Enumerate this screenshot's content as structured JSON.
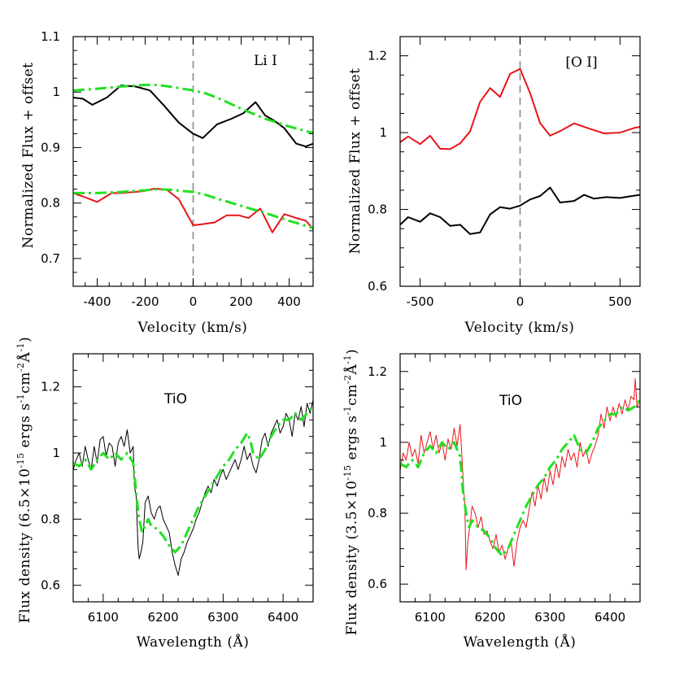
{
  "colors": {
    "black": "#000000",
    "red": "#e8141a",
    "green": "#22e01f",
    "dash": "#888888"
  },
  "chart_data": [
    {
      "id": "li",
      "type": "line",
      "annotation": "Li I",
      "xlabel": "Velocity (km/s)",
      "ylabel": "Normalized Flux + offset",
      "xlim": [
        -500,
        500
      ],
      "ylim": [
        0.65,
        1.1
      ],
      "xticks": [
        -400,
        -200,
        0,
        200,
        400
      ],
      "xtick_labels": [
        "-400",
        "-200",
        "0",
        "200",
        "400"
      ],
      "yticks": [
        0.7,
        0.8,
        0.9,
        1.0,
        1.1
      ],
      "ytick_labels": [
        "0.7",
        "0.8",
        "0.9",
        "1",
        "1.1"
      ],
      "vline": 0,
      "series": [
        {
          "name": "black-spectrum",
          "color": "black",
          "width": 2,
          "style": "solid",
          "x": [
            -500,
            -460,
            -420,
            -360,
            -300,
            -240,
            -180,
            -120,
            -60,
            0,
            40,
            100,
            160,
            210,
            260,
            300,
            340,
            380,
            430,
            470,
            500
          ],
          "y": [
            0.99,
            0.988,
            0.977,
            0.99,
            1.012,
            1.01,
            1.003,
            0.975,
            0.945,
            0.925,
            0.917,
            0.942,
            0.952,
            0.962,
            0.982,
            0.958,
            0.948,
            0.935,
            0.907,
            0.902,
            0.907
          ]
        },
        {
          "name": "green-model-upper",
          "color": "green",
          "width": 3,
          "style": "dashdot",
          "x": [
            -500,
            -400,
            -300,
            -200,
            -150,
            -100,
            0,
            50,
            100,
            200,
            300,
            400,
            500
          ],
          "y": [
            1.003,
            1.006,
            1.01,
            1.013,
            1.013,
            1.01,
            1.003,
            0.998,
            0.99,
            0.97,
            0.952,
            0.938,
            0.926
          ]
        },
        {
          "name": "red-spectrum",
          "color": "red",
          "width": 2,
          "style": "solid",
          "x": [
            -500,
            -460,
            -400,
            -340,
            -300,
            -240,
            -200,
            -160,
            -110,
            -60,
            0,
            40,
            90,
            140,
            190,
            230,
            280,
            330,
            380,
            430,
            470,
            500
          ],
          "y": [
            0.818,
            0.812,
            0.802,
            0.818,
            0.818,
            0.82,
            0.822,
            0.826,
            0.824,
            0.807,
            0.76,
            0.762,
            0.765,
            0.778,
            0.778,
            0.773,
            0.79,
            0.747,
            0.78,
            0.773,
            0.768,
            0.753
          ]
        },
        {
          "name": "green-model-lower",
          "color": "green",
          "width": 3,
          "style": "dashdot",
          "x": [
            -500,
            -400,
            -300,
            -200,
            -150,
            -100,
            0,
            50,
            100,
            200,
            300,
            400,
            500
          ],
          "y": [
            0.818,
            0.818,
            0.82,
            0.823,
            0.825,
            0.824,
            0.82,
            0.815,
            0.808,
            0.795,
            0.782,
            0.768,
            0.755
          ]
        }
      ]
    },
    {
      "id": "oi",
      "type": "line",
      "annotation": "[O I]",
      "xlabel": "Velocity (km/s)",
      "ylabel": "Normalized Flux + offset",
      "xlim": [
        -600,
        600
      ],
      "ylim": [
        0.6,
        1.25
      ],
      "xticks": [
        -500,
        0,
        500
      ],
      "xtick_labels": [
        "-500",
        "0",
        "500"
      ],
      "yticks": [
        0.6,
        0.8,
        1.0,
        1.2
      ],
      "ytick_labels": [
        "0.6",
        "0.8",
        "1",
        "1.2"
      ],
      "vline": 0,
      "series": [
        {
          "name": "red-spectrum",
          "color": "red",
          "width": 2,
          "style": "solid",
          "x": [
            -600,
            -560,
            -500,
            -450,
            -400,
            -350,
            -300,
            -250,
            -200,
            -150,
            -100,
            -50,
            0,
            50,
            100,
            150,
            200,
            270,
            350,
            420,
            500,
            570,
            600
          ],
          "y": [
            0.975,
            0.99,
            0.97,
            0.992,
            0.958,
            0.957,
            0.972,
            1.003,
            1.08,
            1.116,
            1.093,
            1.153,
            1.166,
            1.103,
            1.025,
            0.992,
            1.004,
            1.024,
            1.01,
            0.998,
            1.0,
            1.012,
            1.015
          ]
        },
        {
          "name": "black-spectrum",
          "color": "black",
          "width": 2,
          "style": "solid",
          "x": [
            -600,
            -560,
            -500,
            -450,
            -400,
            -350,
            -300,
            -250,
            -200,
            -150,
            -100,
            -50,
            0,
            50,
            100,
            150,
            200,
            270,
            320,
            370,
            430,
            500,
            560,
            600
          ],
          "y": [
            0.76,
            0.78,
            0.768,
            0.79,
            0.78,
            0.757,
            0.76,
            0.736,
            0.74,
            0.787,
            0.806,
            0.802,
            0.81,
            0.826,
            0.835,
            0.857,
            0.818,
            0.822,
            0.838,
            0.828,
            0.832,
            0.83,
            0.835,
            0.838
          ]
        }
      ]
    },
    {
      "id": "tio-left",
      "type": "line",
      "annotation": "TiO",
      "xlabel": "Wavelength (Å)",
      "ylabel_parts": [
        "Flux density (6.5×10",
        "-15",
        " ergs s",
        "-1",
        "cm",
        "-2",
        "Å",
        "-1",
        ")"
      ],
      "xlim": [
        6050,
        6450
      ],
      "ylim": [
        0.55,
        1.3
      ],
      "xticks": [
        6100,
        6200,
        6300,
        6400
      ],
      "xtick_labels": [
        "6100",
        "6200",
        "6300",
        "6400"
      ],
      "yticks": [
        0.6,
        0.8,
        1.0,
        1.2
      ],
      "ytick_labels": [
        "0.6",
        "0.8",
        "1",
        "1.2"
      ],
      "series": [
        {
          "name": "black-spectrum",
          "color": "black",
          "width": 1,
          "style": "solid",
          "x": [
            6050,
            6055,
            6060,
            6065,
            6070,
            6075,
            6080,
            6085,
            6090,
            6095,
            6100,
            6105,
            6110,
            6115,
            6120,
            6125,
            6130,
            6135,
            6140,
            6145,
            6150,
            6152,
            6155,
            6158,
            6160,
            6163,
            6166,
            6170,
            6175,
            6180,
            6185,
            6190,
            6195,
            6200,
            6205,
            6210,
            6215,
            6220,
            6225,
            6230,
            6235,
            6240,
            6245,
            6250,
            6255,
            6260,
            6265,
            6270,
            6275,
            6280,
            6285,
            6290,
            6295,
            6300,
            6305,
            6310,
            6315,
            6320,
            6325,
            6330,
            6335,
            6340,
            6345,
            6350,
            6355,
            6360,
            6365,
            6370,
            6375,
            6380,
            6385,
            6390,
            6395,
            6400,
            6405,
            6410,
            6415,
            6420,
            6425,
            6430,
            6435,
            6440,
            6445,
            6450
          ],
          "y": [
            0.95,
            0.98,
            1.0,
            0.96,
            1.02,
            0.98,
            0.95,
            1.02,
            0.97,
            1.04,
            1.05,
            0.99,
            1.03,
            1.02,
            0.96,
            1.03,
            1.05,
            1.02,
            1.07,
            1.0,
            1.02,
            0.9,
            0.87,
            0.72,
            0.68,
            0.7,
            0.73,
            0.85,
            0.87,
            0.82,
            0.8,
            0.83,
            0.84,
            0.8,
            0.78,
            0.76,
            0.7,
            0.66,
            0.63,
            0.68,
            0.7,
            0.73,
            0.75,
            0.77,
            0.8,
            0.82,
            0.85,
            0.88,
            0.9,
            0.88,
            0.92,
            0.9,
            0.93,
            0.95,
            0.92,
            0.94,
            0.96,
            0.98,
            0.95,
            0.98,
            1.02,
            0.98,
            1.0,
            0.96,
            0.94,
            0.98,
            1.04,
            1.06,
            1.02,
            1.06,
            1.08,
            1.1,
            1.06,
            1.08,
            1.12,
            1.1,
            1.05,
            1.12,
            1.1,
            1.14,
            1.08,
            1.15,
            1.12,
            1.16
          ]
        },
        {
          "name": "green-model",
          "color": "green",
          "width": 3,
          "style": "dashdot",
          "x": [
            6050,
            6060,
            6070,
            6080,
            6090,
            6100,
            6110,
            6120,
            6130,
            6140,
            6150,
            6155,
            6160,
            6165,
            6170,
            6175,
            6180,
            6190,
            6200,
            6210,
            6220,
            6230,
            6240,
            6250,
            6260,
            6270,
            6280,
            6290,
            6300,
            6310,
            6320,
            6330,
            6340,
            6345,
            6350,
            6360,
            6370,
            6380,
            6390,
            6400,
            6410,
            6420,
            6430,
            6440,
            6450
          ],
          "y": [
            0.97,
            0.96,
            0.98,
            0.95,
            0.98,
            1.0,
            0.98,
            1.0,
            0.98,
            1.0,
            0.97,
            0.88,
            0.8,
            0.76,
            0.78,
            0.8,
            0.78,
            0.77,
            0.75,
            0.72,
            0.7,
            0.72,
            0.76,
            0.8,
            0.84,
            0.87,
            0.9,
            0.93,
            0.96,
            0.98,
            1.01,
            1.03,
            1.06,
            1.04,
            1.0,
            0.98,
            1.01,
            1.05,
            1.08,
            1.1,
            1.1,
            1.12,
            1.1,
            1.12,
            1.14
          ]
        }
      ]
    },
    {
      "id": "tio-right",
      "type": "line",
      "annotation": "TiO",
      "xlabel": "Wavelength (Å)",
      "ylabel_parts": [
        "Flux density (3.5×10",
        "-15",
        " ergs s",
        "-1",
        "cm",
        "-2",
        "Å",
        "-1",
        ")"
      ],
      "xlim": [
        6050,
        6450
      ],
      "ylim": [
        0.55,
        1.25
      ],
      "xticks": [
        6100,
        6200,
        6300,
        6400
      ],
      "xtick_labels": [
        "6100",
        "6200",
        "6300",
        "6400"
      ],
      "yticks": [
        0.6,
        0.8,
        1.0,
        1.2
      ],
      "ytick_labels": [
        "0.6",
        "0.8",
        "1",
        "1.2"
      ],
      "series": [
        {
          "name": "red-spectrum",
          "color": "red",
          "width": 1,
          "style": "solid",
          "x": [
            6050,
            6055,
            6060,
            6065,
            6070,
            6075,
            6080,
            6085,
            6090,
            6095,
            6100,
            6105,
            6110,
            6115,
            6120,
            6125,
            6130,
            6135,
            6140,
            6145,
            6150,
            6155,
            6158,
            6160,
            6163,
            6166,
            6170,
            6175,
            6180,
            6185,
            6190,
            6195,
            6200,
            6205,
            6210,
            6215,
            6220,
            6225,
            6230,
            6235,
            6240,
            6245,
            6250,
            6255,
            6260,
            6265,
            6270,
            6275,
            6280,
            6285,
            6290,
            6295,
            6300,
            6305,
            6310,
            6315,
            6320,
            6325,
            6330,
            6335,
            6340,
            6345,
            6350,
            6355,
            6360,
            6365,
            6370,
            6375,
            6380,
            6385,
            6390,
            6395,
            6400,
            6405,
            6410,
            6415,
            6420,
            6425,
            6430,
            6435,
            6440,
            6442,
            6445,
            6450
          ],
          "y": [
            0.92,
            0.97,
            0.95,
            1.0,
            0.96,
            0.98,
            0.94,
            1.02,
            0.97,
            1.0,
            1.03,
            0.98,
            1.02,
            0.97,
            1.0,
            0.95,
            1.01,
            0.98,
            1.04,
            0.99,
            1.05,
            0.9,
            0.82,
            0.64,
            0.72,
            0.76,
            0.82,
            0.8,
            0.76,
            0.79,
            0.74,
            0.75,
            0.72,
            0.7,
            0.74,
            0.69,
            0.71,
            0.67,
            0.7,
            0.72,
            0.65,
            0.72,
            0.76,
            0.78,
            0.76,
            0.81,
            0.86,
            0.82,
            0.88,
            0.84,
            0.9,
            0.86,
            0.92,
            0.88,
            0.94,
            0.9,
            0.96,
            0.93,
            0.98,
            0.95,
            0.97,
            0.93,
            1.0,
            0.96,
            0.98,
            0.94,
            0.97,
            0.99,
            1.02,
            1.08,
            1.04,
            1.1,
            1.06,
            1.1,
            1.07,
            1.11,
            1.08,
            1.12,
            1.09,
            1.13,
            1.12,
            1.18,
            1.1,
            1.12
          ]
        },
        {
          "name": "green-model",
          "color": "green",
          "width": 3,
          "style": "dashdot",
          "x": [
            6050,
            6060,
            6070,
            6080,
            6090,
            6100,
            6110,
            6120,
            6130,
            6140,
            6150,
            6155,
            6160,
            6165,
            6170,
            6180,
            6190,
            6200,
            6210,
            6220,
            6230,
            6240,
            6250,
            6260,
            6270,
            6280,
            6290,
            6300,
            6310,
            6320,
            6330,
            6340,
            6350,
            6360,
            6370,
            6380,
            6390,
            6400,
            6410,
            6420,
            6430,
            6440,
            6450
          ],
          "y": [
            0.94,
            0.93,
            0.95,
            0.93,
            0.97,
            0.99,
            0.97,
            1.0,
            0.98,
            1.0,
            0.96,
            0.86,
            0.8,
            0.76,
            0.78,
            0.76,
            0.75,
            0.73,
            0.7,
            0.68,
            0.7,
            0.74,
            0.78,
            0.82,
            0.85,
            0.88,
            0.9,
            0.93,
            0.95,
            0.98,
            1.0,
            1.02,
            0.98,
            0.97,
            1.0,
            1.04,
            1.06,
            1.08,
            1.08,
            1.1,
            1.09,
            1.1,
            1.12
          ]
        }
      ]
    }
  ]
}
